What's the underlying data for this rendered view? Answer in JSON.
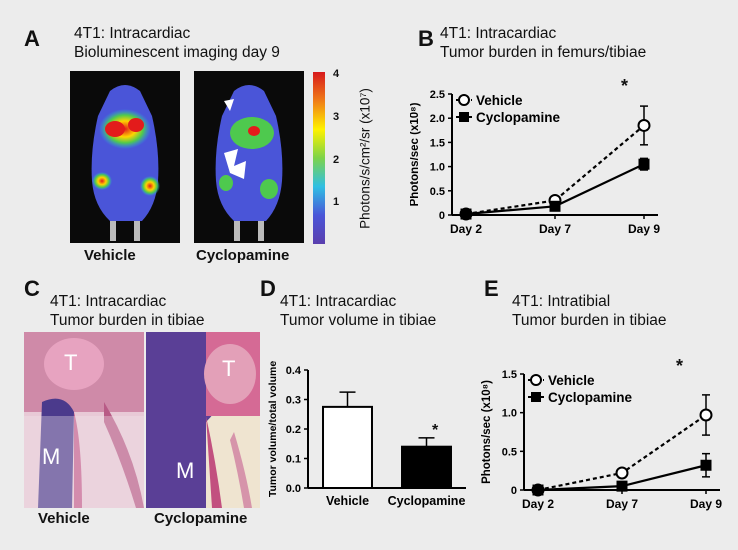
{
  "panel_a": {
    "letter": "A",
    "title_line1": "4T1: Intracardiac",
    "title_line2": "Bioluminescent imaging day 9",
    "label_left": "Vehicle",
    "label_right": "Cyclopamine",
    "colorbar_ticks": [
      "4",
      "3",
      "2",
      "1"
    ],
    "colorbar_unit": "Photons/s/cm²/sr (x10⁷)"
  },
  "panel_b": {
    "letter": "B",
    "title_line1": "4T1: Intracardiac",
    "title_line2": "Tumor burden in femurs/tibiae",
    "asterisk": "*"
  },
  "panel_c": {
    "letter": "C",
    "title_line1": "4T1: Intracardiac",
    "title_line2": "Tumor burden in tibiae",
    "label_left": "Vehicle",
    "label_right": "Cyclopamine",
    "tag_T1": "T",
    "tag_M1": "M",
    "tag_T2": "T",
    "tag_M2": "M"
  },
  "panel_d": {
    "letter": "D",
    "title_line1": "4T1: Intracardiac",
    "title_line2": "Tumor volume in tibiae",
    "asterisk": "*"
  },
  "panel_e": {
    "letter": "E",
    "title_line1": "4T1: Intratibial",
    "title_line2": "Tumor burden in tibiae",
    "asterisk": "*"
  },
  "chart_data": [
    {
      "id": "B",
      "type": "line",
      "categories": [
        "Day 2",
        "Day 7",
        "Day 9"
      ],
      "ylabel": "Photons/sec (x10⁸)",
      "ylim": [
        0,
        2.5
      ],
      "yticks": [
        "0",
        "0.5",
        "1.0",
        "1.5",
        "2.0",
        "2.5"
      ],
      "legend": "top-left",
      "series": [
        {
          "name": "Vehicle",
          "values": [
            0.02,
            0.3,
            1.85
          ],
          "err": [
            0.02,
            0.05,
            0.4
          ],
          "style": "dashed-open-circle"
        },
        {
          "name": "Cyclopamine",
          "values": [
            0.02,
            0.18,
            1.05
          ],
          "err": [
            0.02,
            0.04,
            0.12
          ],
          "style": "solid-filled-square"
        }
      ]
    },
    {
      "id": "D",
      "type": "bar",
      "categories": [
        "Vehicle",
        "Cyclopamine"
      ],
      "ylabel": "Tumor volume/total volume",
      "ylim": [
        0,
        0.4
      ],
      "yticks": [
        "0.0",
        "0.1",
        "0.2",
        "0.3",
        "0.4"
      ],
      "values": [
        0.275,
        0.14
      ],
      "err": [
        0.05,
        0.03
      ],
      "colors": [
        "#ffffff",
        "#000000"
      ]
    },
    {
      "id": "E",
      "type": "line",
      "categories": [
        "Day 2",
        "Day 7",
        "Day 9"
      ],
      "ylabel": "Photons/sec (x10⁸)",
      "ylim": [
        0,
        1.5
      ],
      "yticks": [
        "0",
        "0.5",
        "1.0",
        "1.5"
      ],
      "legend": "top-left",
      "series": [
        {
          "name": "Vehicle",
          "values": [
            0.0,
            0.22,
            0.97
          ],
          "err": [
            0.01,
            0.05,
            0.26
          ],
          "style": "dashed-open-circle"
        },
        {
          "name": "Cyclopamine",
          "values": [
            0.0,
            0.05,
            0.32
          ],
          "err": [
            0.01,
            0.02,
            0.15
          ],
          "style": "solid-filled-square"
        }
      ]
    }
  ]
}
